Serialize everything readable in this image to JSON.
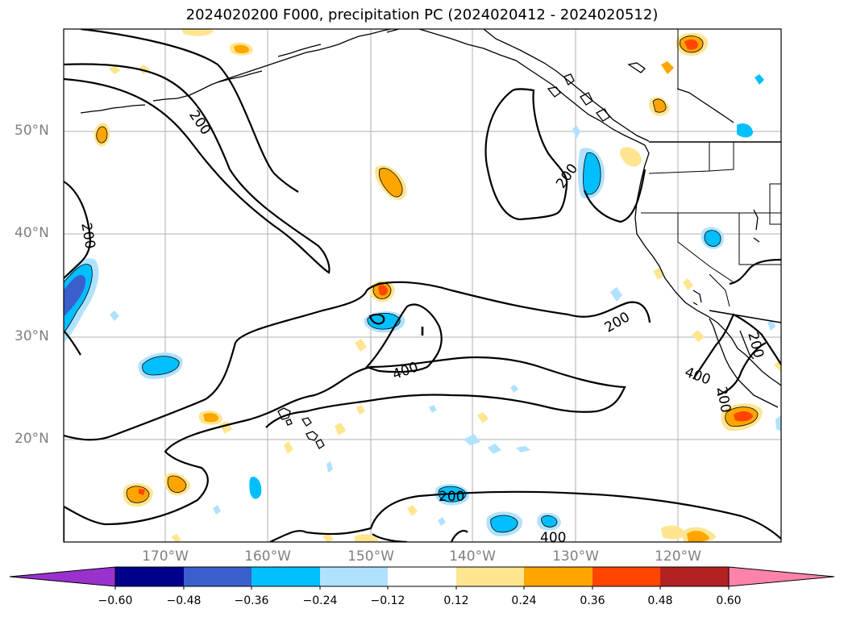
{
  "title": "2024020200 F000, precipitation PC (2024020412 - 2024020512)",
  "lat_labels": [
    "50°N",
    "40°N",
    "30°N",
    "20°N"
  ],
  "lon_labels": [
    "170°W",
    "160°W",
    "150°W",
    "140°W",
    "130°W",
    "120°W"
  ],
  "contour_labels": [
    "200",
    "200",
    "200",
    "200",
    "400",
    "400",
    "200",
    "200",
    "200",
    "400"
  ],
  "colorbar": {
    "ticks": [
      "−0.60",
      "−0.48",
      "−0.36",
      "−0.24",
      "−0.12",
      "0.12",
      "0.24",
      "0.36",
      "0.48",
      "0.60"
    ],
    "colors": [
      "#9932cc",
      "#00008b",
      "#3a5fcd",
      "#00bfff",
      "#b0e2ff",
      "#ffffff",
      "#ffe58f",
      "#ffa500",
      "#ff4500",
      "#b22222",
      "#ff83a8"
    ]
  },
  "colors": {
    "coast": "#000000",
    "grid": "#b0b0b0",
    "contour": "#000000",
    "neg_light": "#b0e2ff",
    "neg_mid": "#00bfff",
    "neg_dark": "#3a5fcd",
    "pos_light": "#ffe58f",
    "pos_mid": "#ffa500",
    "pos_dark": "#ff4500"
  }
}
